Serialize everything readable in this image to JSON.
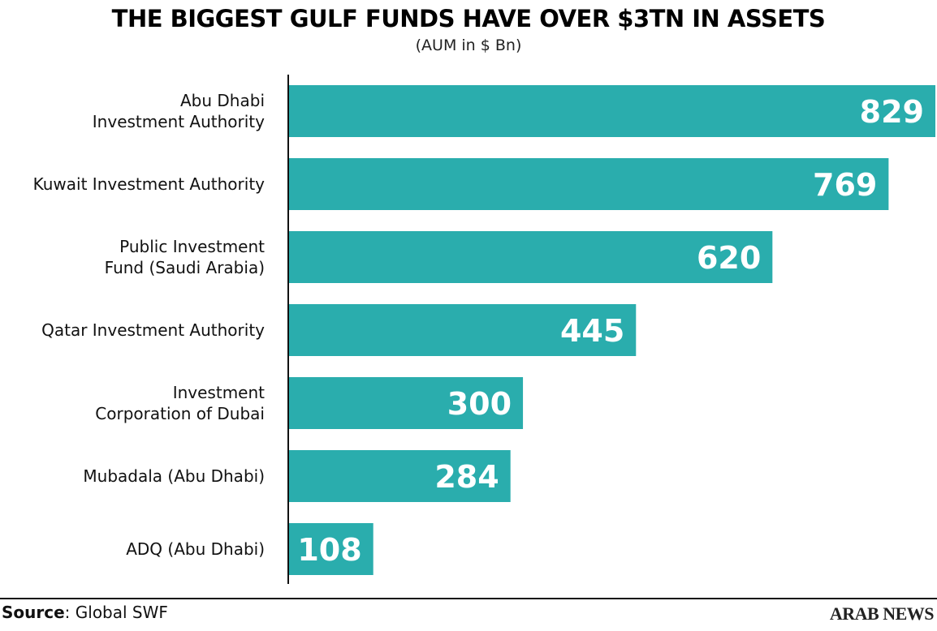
{
  "chart_data": {
    "type": "hbar",
    "title": "THE BIGGEST GULF FUNDS HAVE OVER $3TN IN ASSETS",
    "subtitle": "(AUM in $ Bn)",
    "categories": [
      "Abu Dhabi\nInvestment Authority",
      "Kuwait Investment Authority",
      "Public Investment\nFund (Saudi Arabia)",
      "Qatar Investment Authority",
      "Investment\nCorporation of Dubai",
      "Mubadala (Abu Dhabi)",
      "ADQ (Abu Dhabi)"
    ],
    "values": [
      829,
      769,
      620,
      445,
      300,
      284,
      108
    ],
    "color": "#2aadad",
    "source_label": "Source",
    "source": ": Global SWF",
    "brand": "ARAB NEWS"
  }
}
